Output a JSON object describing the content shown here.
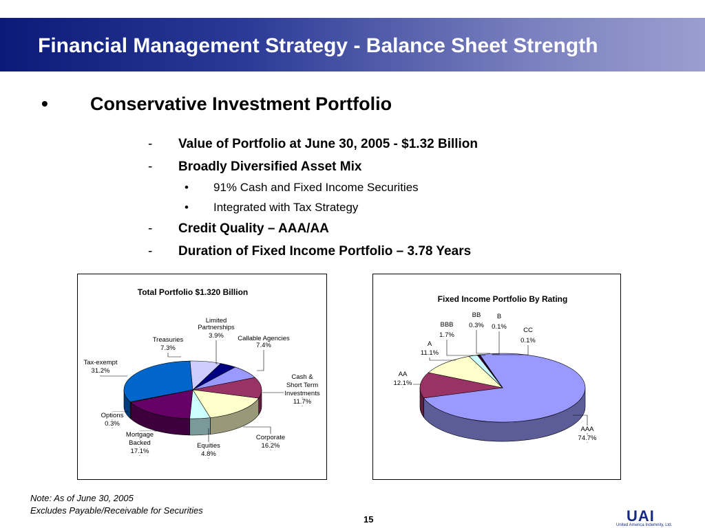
{
  "slide": {
    "title": "Financial Management Strategy - Balance Sheet Strength",
    "bullet_symbol": "•",
    "dash_symbol": "-",
    "main_bullet": "Conservative Investment Portfolio",
    "points": [
      "Value of Portfolio at June 30, 2005 - $1.32 Billion",
      "Broadly Diversified Asset Mix",
      "Credit Quality – AAA/AA",
      "Duration of Fixed Income Portfolio – 3.78 Years"
    ],
    "subpoints": [
      "91% Cash and Fixed Income Securities",
      "Integrated with Tax Strategy"
    ],
    "notes": [
      "Note: As of June 30, 2005",
      "Excludes Payable/Receivable for Securities"
    ],
    "page_number": "15",
    "logo_text": "UAI",
    "logo_subtext": "United America Indemnity, Ltd."
  },
  "chart_data": [
    {
      "type": "pie",
      "title": "Total Portfolio $1.320 Billion",
      "slices": [
        {
          "label": "Limited Partnerships",
          "value": 3.9,
          "display": "3.9%",
          "color": "#000080"
        },
        {
          "label": "Callable Agencies",
          "value": 7.4,
          "display": "7.4%",
          "color": "#9999ff"
        },
        {
          "label": "Cash & Short Term Investments",
          "value": 11.7,
          "display": "11.7%",
          "color": "#993366"
        },
        {
          "label": "Corporate",
          "value": 16.2,
          "display": "16.2%",
          "color": "#ffffcc"
        },
        {
          "label": "Equities",
          "value": 4.8,
          "display": "4.8%",
          "color": "#ccffff"
        },
        {
          "label": "Mortgage Backed",
          "value": 17.1,
          "display": "17.1%",
          "color": "#660066"
        },
        {
          "label": "Options",
          "value": 0.3,
          "display": "0.3%",
          "color": "#ff8080"
        },
        {
          "label": "Tax-exempt",
          "value": 31.2,
          "display": "31.2%",
          "color": "#0066cc"
        },
        {
          "label": "Treasuries",
          "value": 7.3,
          "display": "7.3%",
          "color": "#ccccff"
        }
      ]
    },
    {
      "type": "pie",
      "title": "Fixed Income Portfolio By Rating",
      "slices": [
        {
          "label": "AAA",
          "value": 74.7,
          "display": "74.7%",
          "color": "#9999ff"
        },
        {
          "label": "AA",
          "value": 12.1,
          "display": "12.1%",
          "color": "#993366"
        },
        {
          "label": "A",
          "value": 11.1,
          "display": "11.1%",
          "color": "#ffffcc"
        },
        {
          "label": "BBB",
          "value": 1.7,
          "display": "1.7%",
          "color": "#ccffff"
        },
        {
          "label": "BB",
          "value": 0.3,
          "display": "0.3%",
          "color": "#660066"
        },
        {
          "label": "B",
          "value": 0.1,
          "display": "0.1%",
          "color": "#ff8080"
        },
        {
          "label": "CC",
          "value": 0.1,
          "display": "0.1%",
          "color": "#0066cc"
        }
      ]
    }
  ]
}
